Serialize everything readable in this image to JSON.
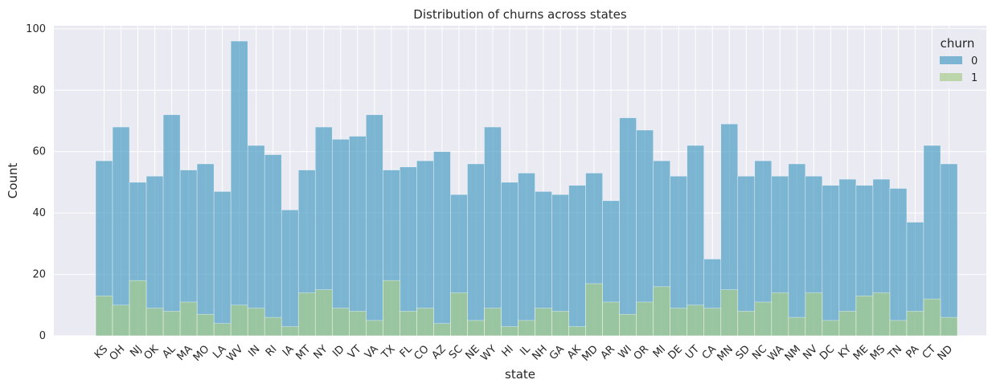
{
  "chart_data": {
    "type": "bar",
    "title": "Distribution of churns across states",
    "xlabel": "state",
    "ylabel": "Count",
    "ylim": [
      0,
      101
    ],
    "yticks": [
      0,
      20,
      40,
      60,
      80,
      100
    ],
    "grid": true,
    "stacked": false,
    "legend": {
      "title": "churn",
      "position": "top-right"
    },
    "categories": [
      "KS",
      "OH",
      "NJ",
      "OK",
      "AL",
      "MA",
      "MO",
      "LA",
      "WV",
      "IN",
      "RI",
      "IA",
      "MT",
      "NY",
      "ID",
      "VT",
      "VA",
      "TX",
      "FL",
      "CO",
      "AZ",
      "SC",
      "NE",
      "WY",
      "HI",
      "IL",
      "NH",
      "GA",
      "AK",
      "MD",
      "AR",
      "WI",
      "OR",
      "MI",
      "DE",
      "UT",
      "CA",
      "MN",
      "SD",
      "NC",
      "WA",
      "NM",
      "NV",
      "DC",
      "KY",
      "ME",
      "MS",
      "TN",
      "PA",
      "CT",
      "ND"
    ],
    "series": [
      {
        "name": "0",
        "color": "#4c9ec4",
        "values": [
          57,
          68,
          50,
          52,
          72,
          54,
          56,
          47,
          96,
          62,
          59,
          41,
          54,
          68,
          64,
          65,
          72,
          54,
          55,
          57,
          60,
          46,
          56,
          68,
          50,
          53,
          47,
          46,
          49,
          53,
          44,
          71,
          67,
          57,
          52,
          62,
          25,
          69,
          52,
          57,
          52,
          56,
          52,
          49,
          51,
          49,
          51,
          48,
          37,
          62,
          56
        ]
      },
      {
        "name": "1",
        "color": "#a8cc8c",
        "values": [
          13,
          10,
          18,
          9,
          8,
          11,
          7,
          4,
          10,
          9,
          6,
          3,
          14,
          15,
          9,
          8,
          5,
          18,
          8,
          9,
          4,
          14,
          5,
          9,
          3,
          5,
          9,
          8,
          3,
          17,
          11,
          7,
          11,
          16,
          9,
          10,
          9,
          15,
          8,
          11,
          14,
          6,
          14,
          5,
          8,
          13,
          14,
          5,
          8,
          12,
          6
        ]
      }
    ]
  }
}
